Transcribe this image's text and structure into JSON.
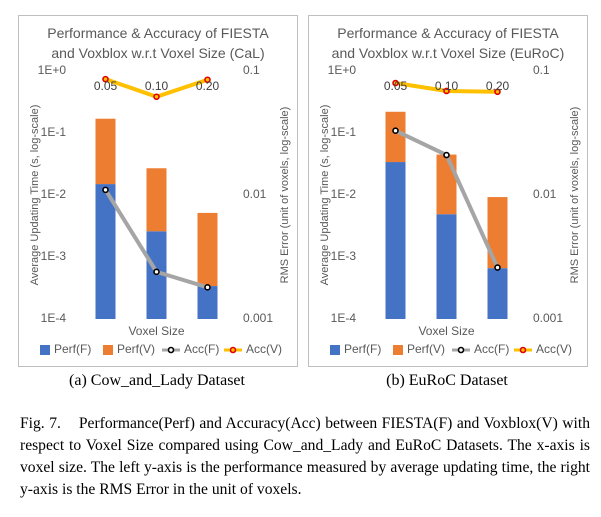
{
  "chart_data": [
    {
      "type": "bar",
      "title": "Performance & Accuracy of FIESTA and Voxblox w.r.t Voxel Size (CaL)",
      "xlabel": "Voxel Size",
      "ylabel": "Average Updating Time (s, log-scale)",
      "y2label": "RMS Error (unit of voxels, log-scale)",
      "categories": [
        "0.05",
        "0.10",
        "0.20"
      ],
      "stacked": true,
      "log_y": true,
      "grid": false,
      "ylim": [
        0.0001,
        1
      ],
      "yticks": [
        {
          "value": 1,
          "label": "1E+0"
        },
        {
          "value": 0.1,
          "label": "1E-1"
        },
        {
          "value": 0.01,
          "label": "1E-2"
        },
        {
          "value": 0.001,
          "label": "1E-3"
        },
        {
          "value": 0.0001,
          "label": "1E-4"
        }
      ],
      "y2lim": [
        0.001,
        0.1
      ],
      "y2ticks": [
        0.1,
        0.01,
        0.001
      ],
      "series": [
        {
          "name": "Perf(F)",
          "color": "#4472c4",
          "values": [
            0.015,
            0.0026,
            0.00034
          ]
        },
        {
          "name": "Perf(V)",
          "color": "#ed7d31",
          "values": [
            0.155,
            0.0244,
            0.0048
          ]
        },
        {
          "name": "Acc(F)",
          "color": "#a5a5a5",
          "axis": "y2",
          "values": [
            0.011,
            0.0024,
            0.0018
          ]
        },
        {
          "name": "Acc(V)",
          "color": "#ffc000",
          "axis": "y2",
          "values": [
            0.086,
            0.062,
            0.085
          ]
        }
      ]
    },
    {
      "type": "bar",
      "title": "Performance & Accuracy of FIESTA and Voxblox w.r.t Voxel Size (EuRoC)",
      "xlabel": "Voxel Size",
      "ylabel": "Average Updating Time (s, log-scale)",
      "y2label": "RMS Error (unit of voxels, log-scale)",
      "categories": [
        "0.05",
        "0.10",
        "0.20"
      ],
      "stacked": true,
      "log_y": true,
      "grid": false,
      "ylim": [
        0.0001,
        1
      ],
      "yticks": [
        {
          "value": 1,
          "label": "1E+0"
        },
        {
          "value": 0.1,
          "label": "1E-1"
        },
        {
          "value": 0.01,
          "label": "1E-2"
        },
        {
          "value": 0.001,
          "label": "1E-3"
        },
        {
          "value": 0.0001,
          "label": "1E-4"
        }
      ],
      "y2lim": [
        0.001,
        0.1
      ],
      "y2ticks": [
        0.1,
        0.01,
        0.001
      ],
      "series": [
        {
          "name": "Perf(F)",
          "color": "#4472c4",
          "values": [
            0.034,
            0.0049,
            0.00066
          ]
        },
        {
          "name": "Perf(V)",
          "color": "#ed7d31",
          "values": [
            0.186,
            0.04,
            0.0086
          ]
        },
        {
          "name": "Acc(F)",
          "color": "#a5a5a5",
          "axis": "y2",
          "values": [
            0.033,
            0.021,
            0.0026
          ]
        },
        {
          "name": "Acc(V)",
          "color": "#ffc000",
          "axis": "y2",
          "values": [
            0.08,
            0.069,
            0.068
          ]
        }
      ]
    }
  ],
  "subcaptions": [
    "(a) Cow_and_Lady Dataset",
    "(b) EuRoC Dataset"
  ],
  "caption": {
    "label": "Fig. 7.",
    "text": "Performance(Perf) and Accuracy(Acc) between FIESTA(F) and Voxblox(V) with respect to Voxel Size compared using Cow_and_Lady and EuRoC Datasets. The x-axis is voxel size. The left y-axis is the performance measured by average updating time, the right y-axis is the RMS Error in the unit of voxels."
  }
}
